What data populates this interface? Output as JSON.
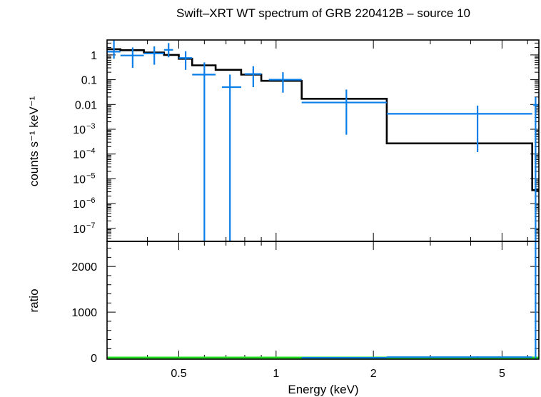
{
  "chart_data": [
    {
      "type": "line",
      "title": "Swift–XRT WT spectrum of GRB 220412B – source 10",
      "ylabel": "counts s⁻¹ keV⁻¹",
      "xscale": "log",
      "yscale": "log",
      "xlim": [
        0.3,
        6.5
      ],
      "ylim": [
        3e-08,
        4
      ],
      "ytick_labels": [
        {
          "value": 1,
          "label": "1"
        },
        {
          "value": 0.1,
          "label": "0.1"
        },
        {
          "value": 0.01,
          "label": "0.01"
        },
        {
          "value": 0.001,
          "label": "10",
          "exp": "−3"
        },
        {
          "value": 0.0001,
          "label": "10",
          "exp": "−4"
        },
        {
          "value": 1e-05,
          "label": "10",
          "exp": "−5"
        },
        {
          "value": 1e-06,
          "label": "10",
          "exp": "−6"
        },
        {
          "value": 1e-07,
          "label": "10",
          "exp": "−7"
        }
      ],
      "series": [
        {
          "kind": "data-points",
          "color": "#0a7ee8",
          "points": [
            {
              "x": 0.315,
              "xlo": 0.3,
              "xhi": 0.33,
              "y": 1.35,
              "ylo": 0.7,
              "yhi": 4
            },
            {
              "x": 0.36,
              "xlo": 0.33,
              "xhi": 0.39,
              "y": 0.95,
              "ylo": 0.3,
              "yhi": 2.0
            },
            {
              "x": 0.42,
              "xlo": 0.39,
              "xhi": 0.45,
              "y": 1.15,
              "ylo": 0.4,
              "yhi": 2.2
            },
            {
              "x": 0.465,
              "xlo": 0.45,
              "xhi": 0.48,
              "y": 1.6,
              "ylo": 0.8,
              "yhi": 3.0
            },
            {
              "x": 0.525,
              "xlo": 0.5,
              "xhi": 0.55,
              "y": 0.75,
              "ylo": 0.25,
              "yhi": 1.4
            },
            {
              "x": 0.6,
              "xlo": 0.55,
              "xhi": 0.65,
              "y": 0.16,
              "ylo": 3e-08,
              "yhi": 0.5
            },
            {
              "x": 0.72,
              "xlo": 0.68,
              "xhi": 0.78,
              "y": 0.05,
              "ylo": 3e-08,
              "yhi": 0.16
            },
            {
              "x": 0.85,
              "xlo": 0.8,
              "xhi": 0.9,
              "y": 0.17,
              "ylo": 0.05,
              "yhi": 0.35
            },
            {
              "x": 1.05,
              "xlo": 0.95,
              "xhi": 1.2,
              "y": 0.1,
              "ylo": 0.03,
              "yhi": 0.2
            },
            {
              "x": 1.65,
              "xlo": 1.2,
              "xhi": 2.2,
              "y": 0.012,
              "ylo": 0.0006,
              "yhi": 0.04
            },
            {
              "x": 4.2,
              "xlo": 2.2,
              "xhi": 6.2,
              "y": 0.0042,
              "ylo": 0.00012,
              "yhi": 0.009
            },
            {
              "x": 6.35,
              "xlo": 6.25,
              "xhi": 6.45,
              "y": 0.0095,
              "ylo": 3e-08,
              "yhi": 0.02
            }
          ]
        },
        {
          "kind": "model",
          "color": "#000000",
          "steps": [
            {
              "x0": 0.3,
              "x1": 0.33,
              "y": 1.7
            },
            {
              "x0": 0.33,
              "x1": 0.39,
              "y": 1.55
            },
            {
              "x0": 0.39,
              "x1": 0.45,
              "y": 1.25
            },
            {
              "x0": 0.45,
              "x1": 0.5,
              "y": 1.0
            },
            {
              "x0": 0.5,
              "x1": 0.55,
              "y": 0.7
            },
            {
              "x0": 0.55,
              "x1": 0.65,
              "y": 0.38
            },
            {
              "x0": 0.65,
              "x1": 0.78,
              "y": 0.25
            },
            {
              "x0": 0.78,
              "x1": 0.9,
              "y": 0.16
            },
            {
              "x0": 0.9,
              "x1": 1.2,
              "y": 0.09
            },
            {
              "x0": 1.2,
              "x1": 2.2,
              "y": 0.017
            },
            {
              "x0": 2.2,
              "x1": 6.2,
              "y": 0.00027
            },
            {
              "x0": 6.2,
              "x1": 6.5,
              "y": 3.5e-06
            }
          ]
        }
      ]
    },
    {
      "type": "line",
      "ylabel": "ratio",
      "xlabel": "Energy (keV)",
      "xscale": "log",
      "xlim": [
        0.3,
        6.5
      ],
      "ylim": [
        -30,
        2550
      ],
      "yticks": [
        0,
        1000,
        2000
      ],
      "xtick_labels": [
        {
          "value": 0.5,
          "label": "0.5"
        },
        {
          "value": 1,
          "label": "1"
        },
        {
          "value": 2,
          "label": "2"
        },
        {
          "value": 5,
          "label": "5"
        }
      ],
      "series": [
        {
          "kind": "data-points",
          "color": "#0a7ee8",
          "points": [
            {
              "x": 1.65,
              "xlo": 1.2,
              "xhi": 2.2,
              "y": 0.7,
              "ylo": 0,
              "yhi": 2
            },
            {
              "x": 4.2,
              "xlo": 2.2,
              "xhi": 6.2,
              "y": 15,
              "ylo": 0,
              "yhi": 33
            },
            {
              "x": 6.35,
              "xlo": 6.25,
              "xhi": 6.45,
              "y": 2550,
              "ylo": -30,
              "yhi": 2550
            }
          ]
        },
        {
          "kind": "reference",
          "color": "#22dd22",
          "y": 1
        }
      ]
    }
  ]
}
